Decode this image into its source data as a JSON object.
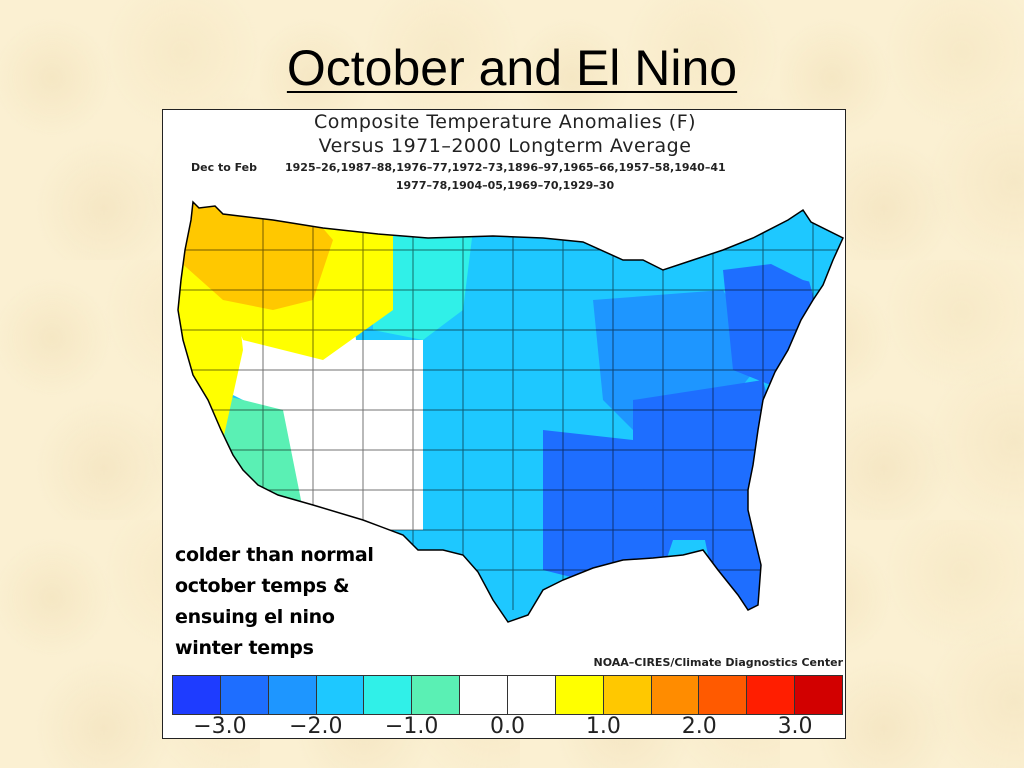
{
  "slide": {
    "title": "October and El Nino"
  },
  "map": {
    "title": "Composite Temperature Anomalies (F)",
    "subtitle": "Versus 1971–2000 Longterm Average",
    "season": "Dec to Feb",
    "years_line1": "1925–26,1987–88,1976–77,1972–73,1896–97,1965–66,1957–58,1940–41",
    "years_line2": "1977–78,1904–05,1969–70,1929–30",
    "credit": "NOAA–CIRES/Climate Diagnostics Center"
  },
  "annotation": {
    "lines": [
      "colder than normal",
      "october temps &",
      "ensuing el nino",
      "winter temps"
    ]
  },
  "colorbar": {
    "colors": [
      "#1e3cff",
      "#1e6eff",
      "#1e96ff",
      "#1ec8ff",
      "#30f0e8",
      "#5af0b4",
      "#ffffff",
      "#ffffff",
      "#ffff00",
      "#ffc800",
      "#ff8c00",
      "#ff5a00",
      "#ff1e00",
      "#d20000"
    ],
    "tick_labels": [
      "−3.0",
      "−2.0",
      "−1.0",
      "0.0",
      "1.0",
      "2.0",
      "3.0"
    ]
  },
  "legend_values": [
    -3.0,
    -2.0,
    -1.0,
    0.0,
    1.0,
    2.0,
    3.0
  ],
  "regions": [
    {
      "name": "pacific-northwest",
      "anomaly": 1.5,
      "color": "#ffc800"
    },
    {
      "name": "northern-rockies",
      "anomaly": 1.0,
      "color": "#ffff00"
    },
    {
      "name": "west-coast",
      "anomaly": 1.0,
      "color": "#ffff00"
    },
    {
      "name": "great-basin",
      "anomaly": 0.0,
      "color": "#ffffff"
    },
    {
      "name": "southwest",
      "anomaly": 0.0,
      "color": "#ffffff"
    },
    {
      "name": "southern-california",
      "anomaly": -0.5,
      "color": "#5af0b4"
    },
    {
      "name": "northern-plains",
      "anomaly": -1.0,
      "color": "#30f0e8"
    },
    {
      "name": "central-plains",
      "anomaly": -1.5,
      "color": "#1ec8ff"
    },
    {
      "name": "midwest",
      "anomaly": -1.5,
      "color": "#1ec8ff"
    },
    {
      "name": "texas",
      "anomaly": -1.5,
      "color": "#1ec8ff"
    },
    {
      "name": "gulf-coast",
      "anomaly": -2.5,
      "color": "#1e6eff"
    },
    {
      "name": "southeast",
      "anomaly": -2.5,
      "color": "#1e6eff"
    },
    {
      "name": "ohio-valley",
      "anomaly": -2.0,
      "color": "#1e96ff"
    },
    {
      "name": "mid-atlantic",
      "anomaly": -2.5,
      "color": "#1e6eff"
    },
    {
      "name": "new-england",
      "anomaly": -1.5,
      "color": "#1ec8ff"
    },
    {
      "name": "florida",
      "anomaly": -2.5,
      "color": "#1e6eff"
    }
  ]
}
